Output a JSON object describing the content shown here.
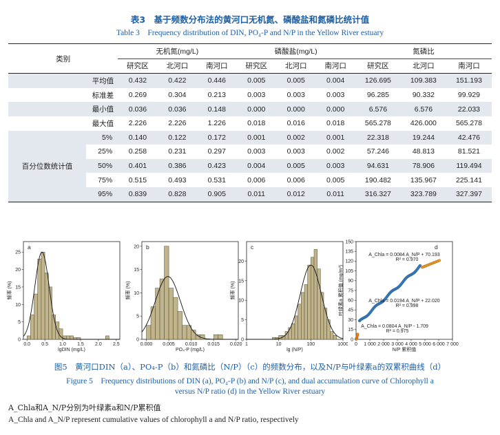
{
  "table": {
    "caption_zh": "表3　基于频数分布法的黄河口无机氮、磷酸盐和氮磷比统计值",
    "caption_en": "Table 3　Frequency distribution of DIN, PO₄-P and N/P in the Yellow River estuary",
    "category_header": "类别",
    "groups": [
      "无机氮(mg/L)",
      "磷酸盐(mg/L)",
      "氮磷比"
    ],
    "subheaders": [
      "研究区",
      "北河口",
      "南河口",
      "研究区",
      "北河口",
      "南河口",
      "研究区",
      "北河口",
      "南河口"
    ],
    "rows": [
      {
        "label": "平均值",
        "values": [
          "0.432",
          "0.422",
          "0.446",
          "0.005",
          "0.005",
          "0.004",
          "126.695",
          "109.383",
          "151.193"
        ]
      },
      {
        "label": "标准差",
        "values": [
          "0.269",
          "0.304",
          "0.213",
          "0.003",
          "0.003",
          "0.003",
          "96.285",
          "90.332",
          "99.929"
        ]
      },
      {
        "label": "最小值",
        "values": [
          "0.036",
          "0.036",
          "0.148",
          "0.000",
          "0.000",
          "0.000",
          "6.576",
          "6.576",
          "22.033"
        ]
      },
      {
        "label": "最大值",
        "values": [
          "2.226",
          "2.226",
          "1.226",
          "0.018",
          "0.016",
          "0.018",
          "565.278",
          "426.000",
          "565.278"
        ]
      }
    ],
    "percentile_label": "百分位数统计值",
    "percentile_rows": [
      {
        "label": "5%",
        "values": [
          "0.140",
          "0.122",
          "0.172",
          "0.001",
          "0.002",
          "0.001",
          "22.318",
          "19.244",
          "42.476"
        ]
      },
      {
        "label": "25%",
        "values": [
          "0.258",
          "0.231",
          "0.297",
          "0.003",
          "0.003",
          "0.002",
          "57.246",
          "48.813",
          "81.521"
        ]
      },
      {
        "label": "50%",
        "values": [
          "0.401",
          "0.386",
          "0.423",
          "0.004",
          "0.005",
          "0.003",
          "94.631",
          "78.906",
          "119.494"
        ]
      },
      {
        "label": "75%",
        "values": [
          "0.515",
          "0.493",
          "0.531",
          "0.006",
          "0.006",
          "0.005",
          "190.482",
          "135.967",
          "225.141"
        ]
      },
      {
        "label": "95%",
        "values": [
          "0.839",
          "0.828",
          "0.905",
          "0.011",
          "0.012",
          "0.011",
          "316.327",
          "323.789",
          "327.397"
        ]
      }
    ]
  },
  "chart_data": [
    {
      "type": "bar",
      "panel": "a",
      "xlabel": "lgDIN  (mg/L)",
      "ylabel": "频率 (%)",
      "xlim": [
        -0.1,
        2.6
      ],
      "ylim": [
        0,
        28
      ],
      "xticks": [
        "0.0",
        "0.5",
        "1.0",
        "1.5",
        "2.0",
        "2.5"
      ],
      "yticks": [
        "0",
        "5",
        "10",
        "15",
        "20",
        "25"
      ],
      "bin_width": 0.1,
      "bins": [
        0.0,
        0.1,
        0.2,
        0.3,
        0.4,
        0.5,
        0.6,
        0.7,
        0.8,
        0.9,
        1.0,
        1.1,
        1.2,
        1.3,
        1.4,
        2.2
      ],
      "values": [
        1,
        7,
        13,
        23,
        25,
        19,
        15,
        7,
        5,
        3,
        1,
        1,
        1,
        0.5,
        0.5,
        1
      ],
      "fit_mean": 0.42,
      "fit_sd": 0.2,
      "fit_peak": 25
    },
    {
      "type": "bar",
      "panel": "b",
      "xlabel": "PO₄-P  (mg/L)",
      "ylabel": "频率 (%)",
      "xlim": [
        -0.001,
        0.0205
      ],
      "ylim": [
        0,
        21
      ],
      "xticks": [
        "0.000",
        "0.005",
        "0.010",
        "0.015",
        "0.020"
      ],
      "yticks": [
        "0",
        "5",
        "10",
        "15",
        "20"
      ],
      "bin_width": 0.001,
      "bins": [
        0.0,
        0.001,
        0.002,
        0.003,
        0.004,
        0.005,
        0.006,
        0.007,
        0.008,
        0.009,
        0.01,
        0.011,
        0.012,
        0.015,
        0.016
      ],
      "values": [
        3,
        7,
        11,
        13,
        20,
        11,
        9,
        6,
        3,
        3,
        2,
        1,
        1,
        1,
        1
      ],
      "fit_mean": 0.0048,
      "fit_sd": 0.0028,
      "fit_peak": 13.5
    },
    {
      "type": "bar",
      "panel": "c",
      "xlabel": "lg  (N/P)",
      "ylabel": "频率 (%)",
      "xlim": [
        0,
        3
      ],
      "ylim": [
        0,
        25
      ],
      "xticks": [
        "1",
        "10",
        "100",
        "1000"
      ],
      "yticks": [
        "0",
        "5",
        "10",
        "15",
        "20"
      ],
      "bin_width": 0.1,
      "bins": [
        0.8,
        0.9,
        1.0,
        1.1,
        1.2,
        1.3,
        1.4,
        1.5,
        1.6,
        1.7,
        1.8,
        1.9,
        2.0,
        2.1,
        2.2,
        2.3,
        2.4,
        2.5,
        2.6,
        2.7
      ],
      "values": [
        0.5,
        0.5,
        1,
        1,
        2,
        3,
        4,
        6,
        9,
        12,
        14,
        19,
        21,
        23,
        18,
        12,
        8,
        5,
        2,
        1
      ],
      "fit_mean": 2.0,
      "fit_sd": 0.33,
      "fit_peak": 19
    },
    {
      "type": "scatter",
      "panel": "d",
      "xlabel": "N/P 累积值",
      "ylabel": "叶绿素a 累积值 (mg/m³)",
      "xlim": [
        0,
        7000
      ],
      "ylim": [
        0,
        150
      ],
      "xticks": [
        "0",
        "1 000",
        "2 000",
        "3 000",
        "4 000",
        "5 000",
        "6 000",
        "7 000"
      ],
      "yticks": [
        "0",
        "15",
        "30",
        "45",
        "60",
        "75",
        "90",
        "105",
        "120",
        "135",
        "150"
      ],
      "segments": [
        {
          "name": "low",
          "color": "#e2832a",
          "x_range": [
            0,
            120
          ]
        },
        {
          "name": "mid",
          "color": "#3a7fbf",
          "x_range": [
            200,
            4700
          ]
        },
        {
          "name": "high",
          "color": "#e8a030",
          "x_range": [
            4800,
            6100
          ]
        }
      ],
      "equations": [
        {
          "eq": "A_Chla = 0.0084 A_N/P + 70.193",
          "r2": "R² = 0.970"
        },
        {
          "eq": "A_Chla = 0.0194 A_N/P + 22.020",
          "r2": "R² = 0.998"
        },
        {
          "eq": "A_Chla = 0.0804 A_N/P - 1.709",
          "r2": "R² = 0.975"
        }
      ]
    }
  ],
  "figure": {
    "caption_zh": "图5　黄河口DIN（a）、PO₄-P（b）和氮磷比（N/P）（c）的频数分布，以及N/P与叶绿素a的双累积曲线（d）",
    "caption_en_1": "Figure 5　Frequency distributions of DIN (a), PO₄-P (b) and N/P (c), and dual accumulation curve of Chlorophyll a",
    "caption_en_2": "versus N/P ratio (d) in the Yellow River estuary",
    "note_zh": "A_Chla和A_N/P分别为叶绿素a和N/P累积值",
    "note_en": "A_Chla and A_N/P represent cumulative values of chlorophyll a and N/P ratio, respectively"
  },
  "colors": {
    "caption_blue": "#1a5fa8",
    "row_bg": "#e3e8ef",
    "bar_fill": "#c2b48a",
    "bar_stroke": "#4a4a3a",
    "orange": "#e2832a",
    "blue": "#3a7fbf"
  }
}
